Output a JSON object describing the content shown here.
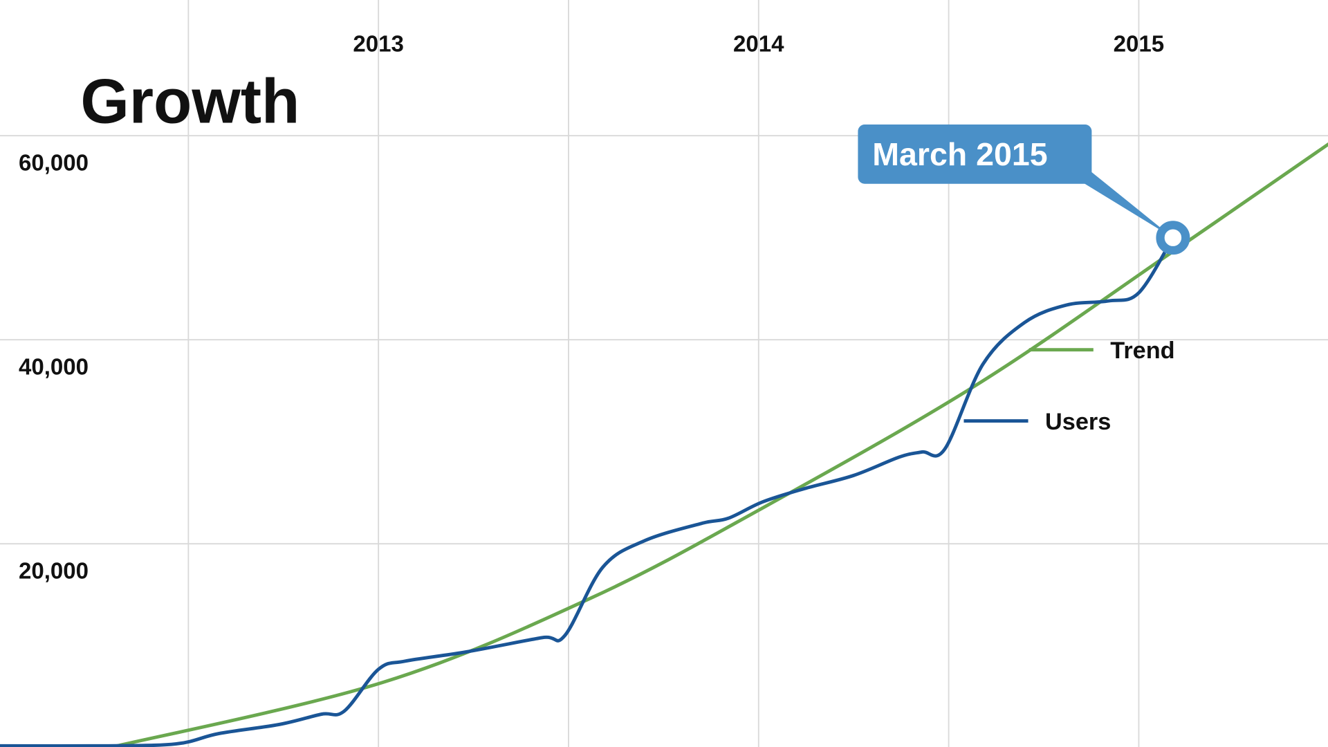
{
  "chart_data": {
    "type": "line",
    "title": "Growth",
    "xlim": [
      2012,
      2015.5
    ],
    "xticks": [
      2013,
      2014,
      2015
    ],
    "xminor_ticks": [
      2012.5,
      2013.5,
      2014.5
    ],
    "ylim": [
      0,
      73300
    ],
    "yticks": [
      {
        "value": 20000,
        "label": "20,000"
      },
      {
        "value": 40000,
        "label": "40,000"
      },
      {
        "value": 60000,
        "label": "60,000"
      }
    ],
    "grid": true,
    "series": [
      {
        "name": "Users",
        "color": "#1a5596",
        "x": [
          2012.0,
          2012.29,
          2012.47,
          2012.58,
          2012.74,
          2012.85,
          2012.91,
          2013.0,
          2013.07,
          2013.23,
          2013.43,
          2013.49,
          2013.59,
          2013.7,
          2013.85,
          2013.92,
          2014.01,
          2014.12,
          2014.25,
          2014.37,
          2014.43,
          2014.49,
          2014.59,
          2014.7,
          2014.81,
          2014.92,
          2015.0,
          2015.09
        ],
        "values": [
          200,
          200,
          400,
          1400,
          2300,
          3300,
          3600,
          7700,
          8500,
          9400,
          10800,
          11000,
          17700,
          20300,
          22000,
          22500,
          24100,
          25400,
          26700,
          28500,
          29000,
          29300,
          37600,
          41700,
          43400,
          43800,
          44600,
          50000
        ]
      },
      {
        "name": "Trend",
        "color": "#6aa84f",
        "x": [
          2012.29,
          2013.01,
          2013.56,
          2014.01,
          2014.57,
          2015.08,
          2015.5
        ],
        "values": [
          0,
          6400,
          14700,
          23500,
          35500,
          48400,
          59200
        ]
      }
    ],
    "annotation": {
      "label": "March 2015",
      "x": 2015.09,
      "y": 50000,
      "color": "#4a90c8"
    }
  }
}
